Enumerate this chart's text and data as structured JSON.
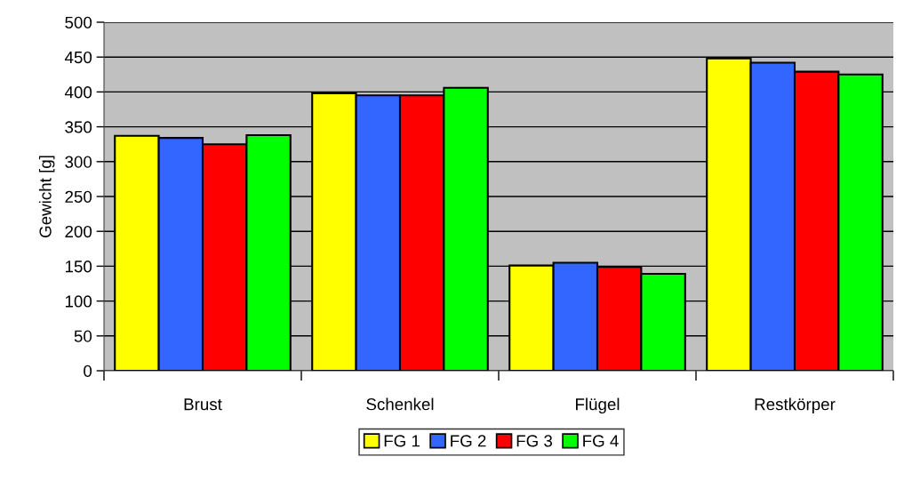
{
  "chart_data": {
    "type": "bar",
    "ylabel": "Gewicht [g]",
    "categories": [
      "Brust",
      "Schenkel",
      "Flügel",
      "Restkörper"
    ],
    "series": [
      {
        "name": "FG 1",
        "color": "#ffff00",
        "values": [
          337,
          398,
          151,
          448
        ]
      },
      {
        "name": "FG 2",
        "color": "#3366ff",
        "values": [
          334,
          395,
          155,
          442
        ]
      },
      {
        "name": "FG 3",
        "color": "#ff0000",
        "values": [
          325,
          395,
          149,
          429
        ]
      },
      {
        "name": "FG 4",
        "color": "#00ff00",
        "values": [
          338,
          406,
          139,
          425
        ]
      }
    ],
    "ylim": [
      0,
      500
    ],
    "yticks": [
      0,
      50,
      100,
      150,
      200,
      250,
      300,
      350,
      400,
      450,
      500
    ],
    "grid": "y",
    "legend": "bottom"
  }
}
